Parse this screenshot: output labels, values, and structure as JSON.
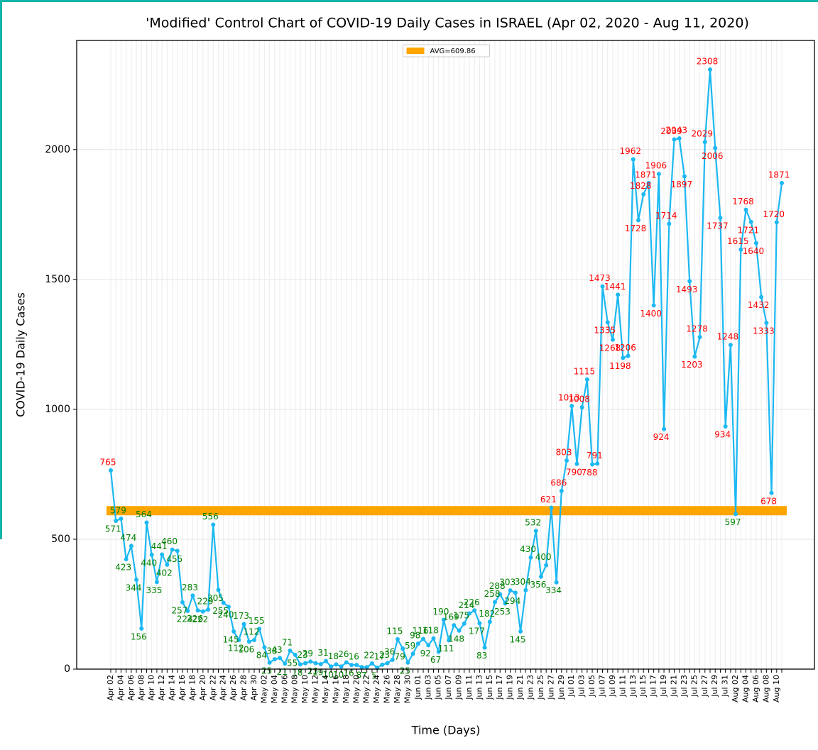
{
  "chart_data": {
    "type": "line",
    "title": "'Modified' Control Chart of COVID-19 Daily Cases in ISRAEL (Apr 02, 2020 - Aug 11, 2020)",
    "x_label": "Time (Days)",
    "y_label": "COVID-19 Daily Cases",
    "categories": [
      "Apr 02",
      null,
      "Apr 04",
      null,
      "Apr 06",
      null,
      "Apr 08",
      null,
      "Apr 10",
      null,
      "Apr 12",
      null,
      "Apr 14",
      null,
      "Apr 16",
      null,
      "Apr 18",
      null,
      "Apr 20",
      null,
      "Apr 22",
      null,
      "Apr 24",
      null,
      "Apr 26",
      null,
      "Apr 28",
      null,
      "Apr 30",
      null,
      "May 02",
      null,
      "May 04",
      null,
      "May 06",
      null,
      "May 08",
      null,
      "May 10",
      null,
      "May 12",
      null,
      "May 14",
      null,
      "May 16",
      null,
      "May 18",
      null,
      "May 20",
      null,
      "May 22",
      null,
      "May 24",
      null,
      "May 26",
      null,
      "May 28",
      null,
      "May 30",
      null,
      "Jun 01",
      null,
      "Jun 03",
      null,
      "Jun 05",
      null,
      "Jun 07",
      null,
      "Jun 09",
      null,
      "Jun 11",
      null,
      "Jun 13",
      null,
      "Jun 15",
      null,
      "Jun 17",
      null,
      "Jun 19",
      null,
      "Jun 21",
      null,
      "Jun 23",
      null,
      "Jun 25",
      null,
      "Jun 27",
      null,
      "Jun 29",
      null,
      "Jul 01",
      null,
      "Jul 03",
      null,
      "Jul 05",
      null,
      "Jul 07",
      null,
      "Jul 09",
      null,
      "Jul 11",
      null,
      "Jul 13",
      null,
      "Jul 15",
      null,
      "Jul 17",
      null,
      "Jul 19",
      null,
      "Jul 21",
      null,
      "Jul 23",
      null,
      "Jul 25",
      null,
      "Jul 27",
      null,
      "Jul 29",
      null,
      "Jul 31",
      null,
      "Aug 02",
      null,
      "Aug 04",
      null,
      "Aug 06",
      null,
      "Aug 08",
      null,
      "Aug 10",
      null
    ],
    "values": [
      765,
      571,
      579,
      423,
      474,
      344,
      156,
      564,
      440,
      335,
      441,
      402,
      460,
      455,
      257,
      224,
      283,
      226,
      222,
      229,
      556,
      305,
      255,
      240,
      145,
      112,
      173,
      106,
      112,
      155,
      84,
      25,
      38,
      43,
      21,
      71,
      55,
      18,
      23,
      29,
      23,
      19,
      31,
      10,
      18,
      10,
      26,
      16,
      16,
      8,
      7,
      22,
      5,
      17,
      23,
      36,
      115,
      79,
      25,
      59,
      98,
      116,
      92,
      118,
      67,
      190,
      111,
      169,
      148,
      175,
      214,
      226,
      177,
      83,
      182,
      258,
      288,
      253,
      303,
      294,
      145,
      304,
      430,
      532,
      356,
      400,
      621,
      334,
      686,
      803,
      1013,
      790,
      1008,
      1115,
      788,
      791,
      1473,
      1335,
      1268,
      1441,
      1198,
      1206,
      1962,
      1728,
      1828,
      1871,
      1400,
      1906,
      924,
      1714,
      2039,
      2043,
      1897,
      1493,
      1203,
      1278,
      2029,
      2308,
      2006,
      1737,
      934,
      1248,
      597,
      1615,
      1768,
      1721,
      1640,
      1432,
      1333,
      678,
      1720,
      1871
    ],
    "color": "#1cb8f2",
    "above_color": "red",
    "below_color": "green",
    "average": {
      "value": 609.86,
      "label": "AVG=609.86",
      "color": "orange"
    },
    "ylim": [
      0,
      2420
    ],
    "yticks": [
      0,
      500,
      1000,
      1500,
      2000
    ],
    "grid": true,
    "legend": "upper center"
  }
}
